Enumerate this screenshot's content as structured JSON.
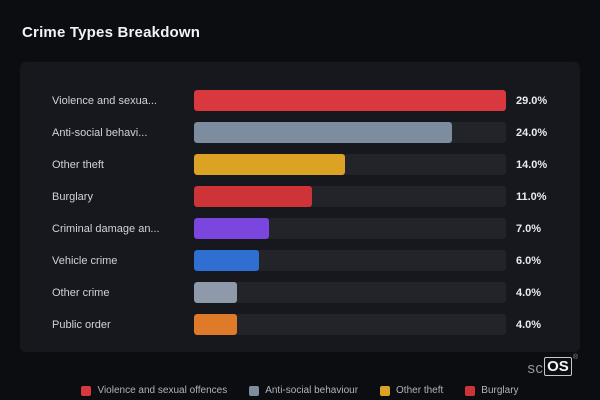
{
  "title": "Crime Types Breakdown",
  "chart_data": {
    "type": "bar",
    "orientation": "horizontal",
    "title": "Crime Types Breakdown",
    "xlabel": "",
    "ylabel": "",
    "xmax": 29.0,
    "grid": false,
    "categories": [
      "Violence and sexua...",
      "Anti-social behavi...",
      "Other theft",
      "Burglary",
      "Criminal damage an...",
      "Vehicle crime",
      "Other crime",
      "Public order"
    ],
    "values": [
      29.0,
      24.0,
      14.0,
      11.0,
      7.0,
      6.0,
      4.0,
      4.0
    ],
    "value_labels": [
      "29.0%",
      "24.0%",
      "14.0%",
      "11.0%",
      "7.0%",
      "6.0%",
      "4.0%",
      "4.0%"
    ],
    "bar_colors": [
      "#d9383e",
      "#7e8ca0",
      "#dca223",
      "#ce3337",
      "#7a46dd",
      "#2f6fd2",
      "#8e9aa9",
      "#de7a28"
    ],
    "legend_position": "bottom",
    "legend": [
      {
        "label": "Violence and sexual offences",
        "color": "#d9383e"
      },
      {
        "label": "Anti-social behaviour",
        "color": "#7e8ca0"
      },
      {
        "label": "Other theft",
        "color": "#dca223"
      },
      {
        "label": "Burglary",
        "color": "#ce3337"
      }
    ]
  },
  "branding": {
    "prefix": "sc",
    "suffix": "OS",
    "reg": "®"
  },
  "colors": {
    "page_background": "#0c0d11",
    "card_background": "#17181d",
    "bar_track": "#232429"
  }
}
